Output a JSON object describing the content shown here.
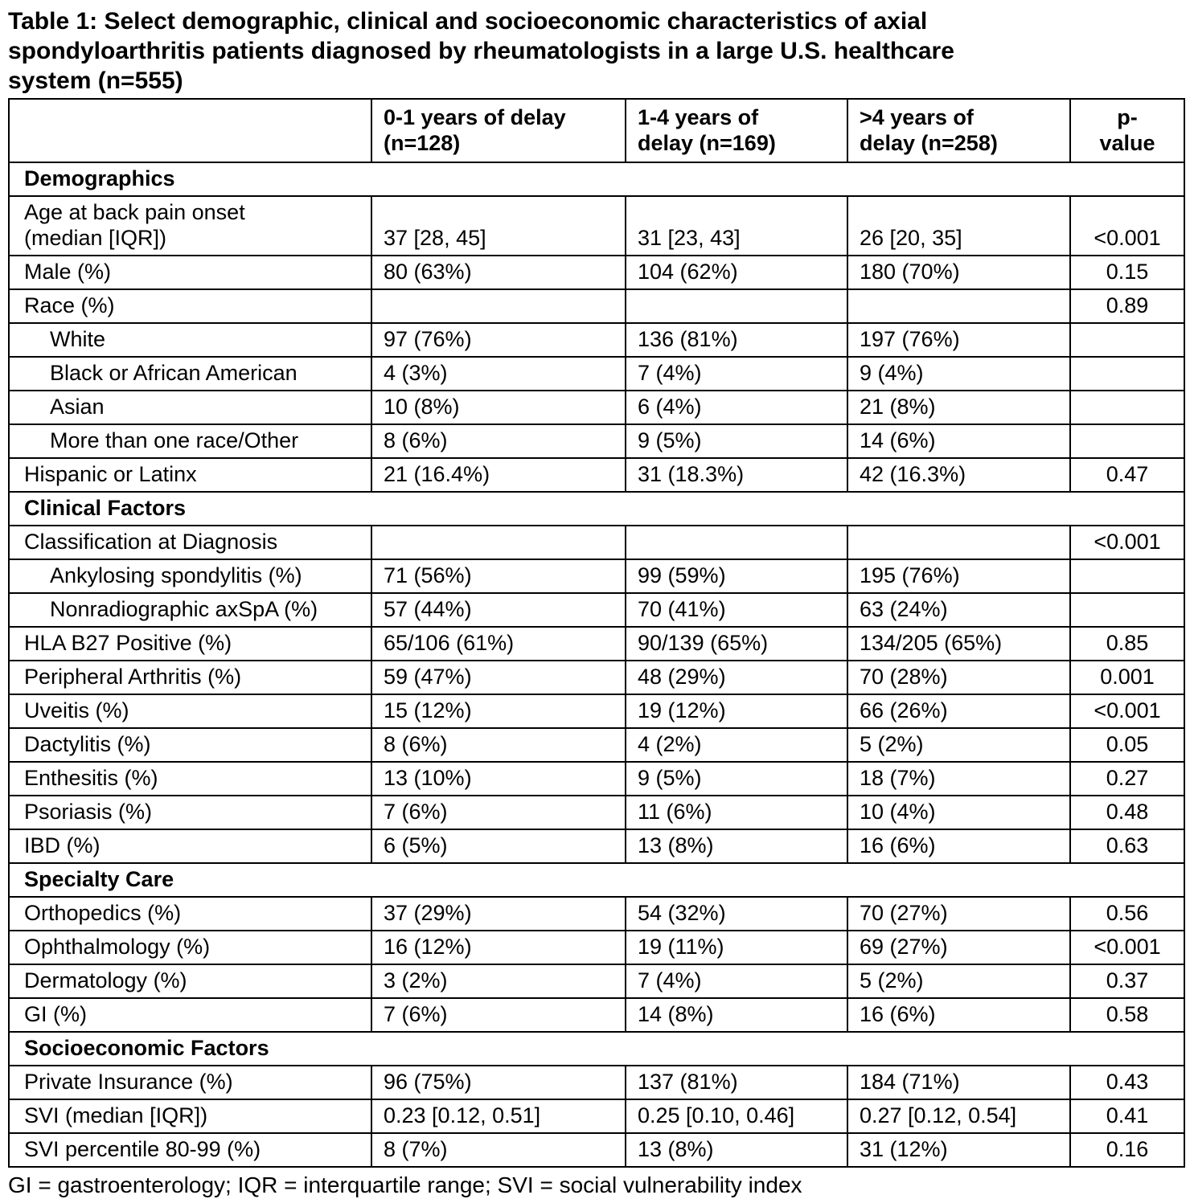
{
  "title": "Table 1: Select demographic, clinical and socioeconomic characteristics of axial\nspondyloarthritis patients diagnosed by rheumatologists in a large U.S. healthcare\nsystem (n=555)",
  "footnote": "GI = gastroenterology; IQR = interquartile range; SVI = social vulnerability index",
  "colors": {
    "text": "#000000",
    "background": "#ffffff",
    "border": "#000000"
  },
  "table": {
    "columns": [
      "",
      "0-1 years of delay\n(n=128)",
      "1-4 years of\ndelay (n=169)",
      ">4 years of\ndelay (n=258)",
      "p-\nvalue"
    ],
    "rows": [
      {
        "section": "Demographics"
      },
      {
        "label": "Age at back pain onset\n(median [IQR])",
        "indent": false,
        "values": [
          "37 [28, 45]",
          "31 [23, 43]",
          "26 [20, 35]"
        ],
        "p": "<0.001"
      },
      {
        "label": "Male (%)",
        "indent": false,
        "values": [
          "80 (63%)",
          "104 (62%)",
          "180 (70%)"
        ],
        "p": "0.15"
      },
      {
        "label": "Race (%)",
        "indent": false,
        "values": [
          "",
          "",
          ""
        ],
        "p": "0.89"
      },
      {
        "label": "White",
        "indent": true,
        "values": [
          "97 (76%)",
          "136 (81%)",
          "197 (76%)"
        ],
        "p": ""
      },
      {
        "label": "Black or African American",
        "indent": true,
        "values": [
          "4 (3%)",
          "7 (4%)",
          "9 (4%)"
        ],
        "p": ""
      },
      {
        "label": "Asian",
        "indent": true,
        "values": [
          "10 (8%)",
          "6 (4%)",
          "21 (8%)"
        ],
        "p": ""
      },
      {
        "label": "More than one race/Other",
        "indent": true,
        "values": [
          "8 (6%)",
          "9 (5%)",
          "14 (6%)"
        ],
        "p": ""
      },
      {
        "label": "Hispanic or Latinx",
        "indent": false,
        "values": [
          "21 (16.4%)",
          "31 (18.3%)",
          "42 (16.3%)"
        ],
        "p": "0.47"
      },
      {
        "section": "Clinical Factors"
      },
      {
        "label": "Classification at Diagnosis",
        "indent": false,
        "values": [
          "",
          "",
          ""
        ],
        "p": "<0.001"
      },
      {
        "label": "Ankylosing spondylitis (%)",
        "indent": true,
        "values": [
          "71 (56%)",
          "99 (59%)",
          "195 (76%)"
        ],
        "p": ""
      },
      {
        "label": "Nonradiographic axSpA (%)",
        "indent": true,
        "values": [
          "57 (44%)",
          "70 (41%)",
          "63 (24%)"
        ],
        "p": ""
      },
      {
        "label": "HLA B27 Positive (%)",
        "indent": false,
        "values": [
          "65/106 (61%)",
          "90/139 (65%)",
          "134/205 (65%)"
        ],
        "p": "0.85"
      },
      {
        "label": "Peripheral Arthritis (%)",
        "indent": false,
        "values": [
          "59 (47%)",
          "48 (29%)",
          "70 (28%)"
        ],
        "p": "0.001"
      },
      {
        "label": "Uveitis (%)",
        "indent": false,
        "values": [
          "15 (12%)",
          "19 (12%)",
          "66 (26%)"
        ],
        "p": "<0.001"
      },
      {
        "label": "Dactylitis (%)",
        "indent": false,
        "values": [
          "8 (6%)",
          "4 (2%)",
          "5 (2%)"
        ],
        "p": "0.05"
      },
      {
        "label": "Enthesitis (%)",
        "indent": false,
        "values": [
          "13 (10%)",
          "9 (5%)",
          "18 (7%)"
        ],
        "p": "0.27"
      },
      {
        "label": "Psoriasis (%)",
        "indent": false,
        "values": [
          "7 (6%)",
          "11 (6%)",
          "10 (4%)"
        ],
        "p": "0.48"
      },
      {
        "label": "IBD (%)",
        "indent": false,
        "values": [
          "6 (5%)",
          "13 (8%)",
          "16 (6%)"
        ],
        "p": "0.63"
      },
      {
        "section": "Specialty Care"
      },
      {
        "label": "Orthopedics (%)",
        "indent": false,
        "values": [
          "37 (29%)",
          "54 (32%)",
          "70 (27%)"
        ],
        "p": "0.56"
      },
      {
        "label": "Ophthalmology (%)",
        "indent": false,
        "values": [
          "16 (12%)",
          "19 (11%)",
          "69 (27%)"
        ],
        "p": "<0.001"
      },
      {
        "label": "Dermatology (%)",
        "indent": false,
        "values": [
          "3 (2%)",
          "7 (4%)",
          "5 (2%)"
        ],
        "p": "0.37"
      },
      {
        "label": "GI (%)",
        "indent": false,
        "values": [
          "7 (6%)",
          "14 (8%)",
          "16 (6%)"
        ],
        "p": "0.58"
      },
      {
        "section": "Socioeconomic Factors"
      },
      {
        "label": "Private Insurance (%)",
        "indent": false,
        "values": [
          "96 (75%)",
          "137 (81%)",
          "184 (71%)"
        ],
        "p": "0.43"
      },
      {
        "label": "SVI (median [IQR])",
        "indent": false,
        "values": [
          "0.23 [0.12, 0.51]",
          "0.25 [0.10, 0.46]",
          "0.27 [0.12, 0.54]"
        ],
        "p": "0.41"
      },
      {
        "label": "SVI percentile 80-99 (%)",
        "indent": false,
        "values": [
          "8 (7%)",
          "13 (8%)",
          "31 (12%)"
        ],
        "p": "0.16"
      }
    ]
  }
}
